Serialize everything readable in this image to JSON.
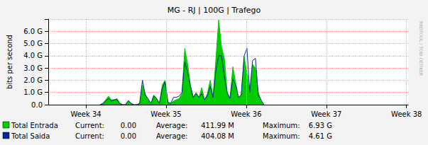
{
  "chart_data": {
    "type": "line",
    "title": "MG - RJ | 100G | Trafego",
    "y_label": "bits per second",
    "watermark": "RRDTOOL / TOBI OETIKER",
    "grid": true,
    "xlim": [
      33.53,
      38.02
    ],
    "xticks": [
      {
        "value": 34,
        "label": "Week 34"
      },
      {
        "value": 35,
        "label": "Week 35"
      },
      {
        "value": 36,
        "label": "Week 36"
      },
      {
        "value": 37,
        "label": "Week 37"
      },
      {
        "value": 38,
        "label": "Week 38"
      }
    ],
    "ylim": [
      0,
      7000000000
    ],
    "yticks": [
      {
        "value": 0,
        "label": "0.0"
      },
      {
        "value": 1000000000,
        "label": "1.0 G"
      },
      {
        "value": 2000000000,
        "label": "2.0 G"
      },
      {
        "value": 3000000000,
        "label": "3.0 G"
      },
      {
        "value": 4000000000,
        "label": "4.0 G"
      },
      {
        "value": 5000000000,
        "label": "5.0 G"
      },
      {
        "value": 6000000000,
        "label": "6.0 G"
      }
    ],
    "x": [
      34.176,
      34.211,
      34.247,
      34.282,
      34.317,
      34.352,
      34.388,
      34.423,
      34.458,
      34.493,
      34.529,
      34.564,
      34.599,
      34.634,
      34.67,
      34.705,
      34.74,
      34.775,
      34.811,
      34.846,
      34.881,
      34.916,
      34.952,
      34.987,
      35.022,
      35.057,
      35.093,
      35.128,
      35.163,
      35.198,
      35.233,
      35.269,
      35.304,
      35.339,
      35.374,
      35.41,
      35.445,
      35.48,
      35.515,
      35.551,
      35.586,
      35.621,
      35.656,
      35.692,
      35.727,
      35.762,
      35.797,
      35.833,
      35.868,
      35.903,
      35.938,
      35.974,
      36.009,
      36.044,
      36.079,
      36.115,
      36.15,
      36.185,
      36.22
    ],
    "series": [
      {
        "name": "Total Entrada",
        "color": "#00cc00",
        "type": "area",
        "stats": [
          {
            "title": "Current:",
            "value": 0,
            "label": "0.00"
          },
          {
            "title": "Average:",
            "value": 411990000,
            "label": "411.99 M"
          },
          {
            "title": "Maximum:",
            "value": 6930000000,
            "label": "6.93 G"
          }
        ],
        "values": [
          0,
          100000000.0,
          400000000.0,
          700000000.0,
          400000000.0,
          400000000.0,
          500000000.0,
          100000000.0,
          0,
          0,
          300000000.0,
          100000000.0,
          0,
          0,
          100000000.0,
          1600000000.0,
          900000000.0,
          400000000.0,
          100000000.0,
          800000000.0,
          500000000.0,
          100000000.0,
          1600000000.0,
          2000000000.0,
          200000000.0,
          100000000.0,
          300000000.0,
          400000000.0,
          500000000.0,
          900000000.0,
          4600000000.0,
          3300000000.0,
          1600000000.0,
          600000000.0,
          1000000000.0,
          600000000.0,
          1400000000.0,
          400000000.0,
          900000000.0,
          2000000000.0,
          600000000.0,
          3700000000.0,
          6930000000.0,
          4700000000.0,
          3800000000.0,
          1000000000.0,
          500000000.0,
          3100000000.0,
          1800000000.0,
          600000000.0,
          800000000.0,
          3900000000.0,
          2600000000.0,
          900000000.0,
          3300000000.0,
          3000000000.0,
          1000000000.0,
          300000000.0,
          0
        ]
      },
      {
        "name": "Total Saida",
        "color": "#002a97",
        "type": "line",
        "stats": [
          {
            "title": "Current:",
            "value": 0,
            "label": "0.00"
          },
          {
            "title": "Average:",
            "value": 404080000,
            "label": "404.08 M"
          },
          {
            "title": "Maximum:",
            "value": 4610000000,
            "label": "4.61 G"
          }
        ],
        "values": [
          0,
          100000000.0,
          300000000.0,
          500000000.0,
          300000000.0,
          400000000.0,
          400000000.0,
          100000000.0,
          0,
          0,
          350000000.0,
          100000000.0,
          0,
          0,
          100000000.0,
          2000000000.0,
          800000000.0,
          500000000.0,
          100000000.0,
          700000000.0,
          500000000.0,
          100000000.0,
          1300000000.0,
          1900000000.0,
          200000000.0,
          100000000.0,
          600000000.0,
          600000000.0,
          700000000.0,
          1000000000.0,
          3500000000.0,
          2600000000.0,
          1500000000.0,
          600000000.0,
          900000000.0,
          600000000.0,
          900000000.0,
          400000000.0,
          700000000.0,
          1500000000.0,
          600000000.0,
          2800000000.0,
          4000000000.0,
          4000000000.0,
          2300000000.0,
          1000000000.0,
          500000000.0,
          2100000000.0,
          1600000000.0,
          600000000.0,
          800000000.0,
          4000000000.0,
          4610000000.0,
          1000000000.0,
          3600000000.0,
          3800000000.0,
          800000000.0,
          400000000.0,
          0
        ]
      }
    ]
  }
}
